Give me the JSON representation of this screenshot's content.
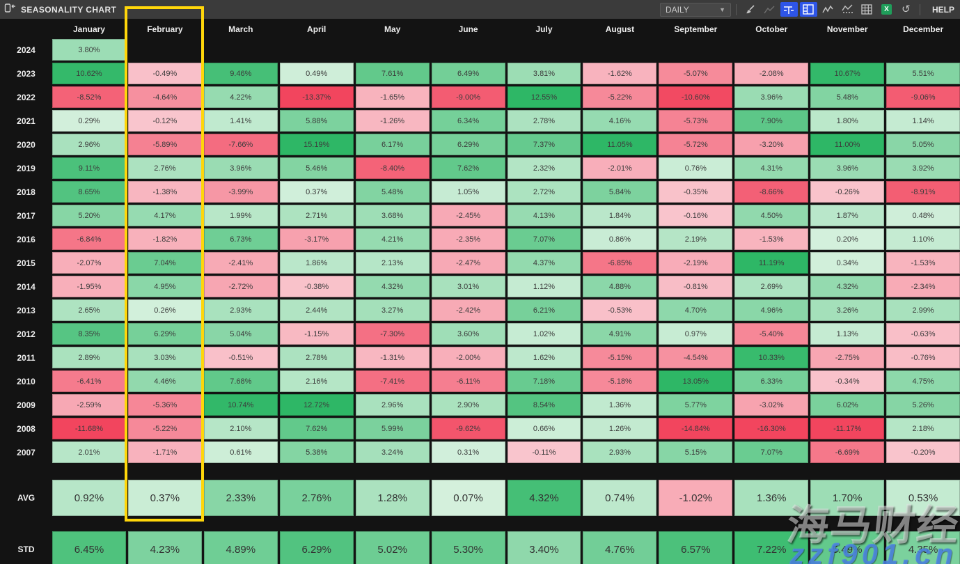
{
  "title_bar": {
    "title": "SEASONALITY CHART",
    "timeframe_value": "DAILY",
    "help_label": "HELP",
    "icons": [
      "collapse-panel-icon",
      "brush-icon",
      "trend-line-icon",
      "axis-scale-icon",
      "layout-grid-icon",
      "line-chart-icon",
      "forecast-chart-icon",
      "table-icon",
      "excel-export-icon",
      "undo-icon"
    ],
    "active_icons": [
      "axis-scale-icon",
      "layout-grid-icon"
    ],
    "accent_blue": "#2e55e8",
    "excel_green": "#1f9e5a"
  },
  "highlight": {
    "column": "February",
    "color": "#ffd60a"
  },
  "watermark": {
    "cjk_text": "海马财经",
    "url_text": "zzf901.cn",
    "url_color": "#4d86e8"
  },
  "chart_data": {
    "type": "heatmap",
    "title": "SEASONALITY CHART",
    "value_format": "percent",
    "columns": [
      "January",
      "February",
      "March",
      "April",
      "May",
      "June",
      "July",
      "August",
      "September",
      "October",
      "November",
      "December"
    ],
    "rows": [
      {
        "label": "2024",
        "values": [
          3.8,
          null,
          null,
          null,
          null,
          null,
          null,
          null,
          null,
          null,
          null,
          null
        ]
      },
      {
        "label": "2023",
        "values": [
          10.62,
          -0.49,
          9.46,
          0.49,
          7.61,
          6.49,
          3.81,
          -1.62,
          -5.07,
          -2.08,
          10.67,
          5.51
        ]
      },
      {
        "label": "2022",
        "values": [
          -8.52,
          -4.64,
          4.22,
          -13.37,
          -1.65,
          -9.0,
          12.55,
          -5.22,
          -10.6,
          3.96,
          5.48,
          -9.06
        ]
      },
      {
        "label": "2021",
        "values": [
          0.29,
          -0.12,
          1.41,
          5.88,
          -1.26,
          6.34,
          2.78,
          4.16,
          -5.73,
          7.9,
          1.8,
          1.14
        ]
      },
      {
        "label": "2020",
        "values": [
          2.96,
          -5.89,
          -7.66,
          15.19,
          6.17,
          6.29,
          7.37,
          11.05,
          -5.72,
          -3.2,
          11.0,
          5.05
        ]
      },
      {
        "label": "2019",
        "values": [
          9.11,
          2.76,
          3.96,
          5.46,
          -8.4,
          7.62,
          2.32,
          -2.01,
          0.76,
          4.31,
          3.96,
          3.92
        ]
      },
      {
        "label": "2018",
        "values": [
          8.65,
          -1.38,
          -3.99,
          0.37,
          5.48,
          1.05,
          2.72,
          5.84,
          -0.35,
          -8.66,
          -0.26,
          -8.91
        ]
      },
      {
        "label": "2017",
        "values": [
          5.2,
          4.17,
          1.99,
          2.71,
          3.68,
          -2.45,
          4.13,
          1.84,
          -0.16,
          4.5,
          1.87,
          0.48
        ]
      },
      {
        "label": "2016",
        "values": [
          -6.84,
          -1.82,
          6.73,
          -3.17,
          4.21,
          -2.35,
          7.07,
          0.86,
          2.19,
          -1.53,
          0.2,
          1.1
        ]
      },
      {
        "label": "2015",
        "values": [
          -2.07,
          7.04,
          -2.41,
          1.86,
          2.13,
          -2.47,
          4.37,
          -6.85,
          -2.19,
          11.19,
          0.34,
          -1.53
        ]
      },
      {
        "label": "2014",
        "values": [
          -1.95,
          4.95,
          -2.72,
          -0.38,
          4.32,
          3.01,
          1.12,
          4.88,
          -0.81,
          2.69,
          4.32,
          -2.34
        ]
      },
      {
        "label": "2013",
        "values": [
          2.65,
          0.26,
          2.93,
          2.44,
          3.27,
          -2.42,
          6.21,
          -0.53,
          4.7,
          4.96,
          3.26,
          2.99
        ]
      },
      {
        "label": "2012",
        "values": [
          8.35,
          6.29,
          5.04,
          -1.15,
          -7.3,
          3.6,
          1.02,
          4.91,
          0.97,
          -5.4,
          1.13,
          -0.63
        ]
      },
      {
        "label": "2011",
        "values": [
          2.89,
          3.03,
          -0.51,
          2.78,
          -1.31,
          -2.0,
          1.62,
          -5.15,
          -4.54,
          10.33,
          -2.75,
          -0.76
        ]
      },
      {
        "label": "2010",
        "values": [
          -6.41,
          4.46,
          7.68,
          2.16,
          -7.41,
          -6.11,
          7.18,
          -5.18,
          13.05,
          6.33,
          -0.34,
          4.75
        ]
      },
      {
        "label": "2009",
        "values": [
          -2.59,
          -5.36,
          10.74,
          12.72,
          2.96,
          2.9,
          8.54,
          1.36,
          5.77,
          -3.02,
          6.02,
          5.26
        ]
      },
      {
        "label": "2008",
        "values": [
          -11.68,
          -5.22,
          2.1,
          7.62,
          5.99,
          -9.62,
          0.66,
          1.26,
          -14.84,
          -16.3,
          -11.17,
          2.18
        ]
      },
      {
        "label": "2007",
        "values": [
          2.01,
          -1.71,
          0.61,
          5.38,
          3.24,
          0.31,
          -0.11,
          2.93,
          5.15,
          7.07,
          -6.69,
          -0.2
        ]
      }
    ],
    "summary_rows": [
      {
        "label": "AVG",
        "values": [
          0.92,
          0.37,
          2.33,
          2.76,
          1.28,
          0.07,
          4.32,
          0.74,
          -1.02,
          1.36,
          1.7,
          0.53
        ]
      },
      {
        "label": "STD",
        "values": [
          6.45,
          4.23,
          4.89,
          6.29,
          5.02,
          5.3,
          3.4,
          4.76,
          6.57,
          7.22,
          5.49,
          4.35
        ]
      }
    ],
    "colors": {
      "positive_strong": "#2eb766",
      "positive_light": "#d6f1de",
      "negative_strong": "#f2455e",
      "negative_light": "#f9c6ce"
    },
    "color_scales": {
      "year": 11,
      "avg": 5,
      "std": 8
    }
  }
}
